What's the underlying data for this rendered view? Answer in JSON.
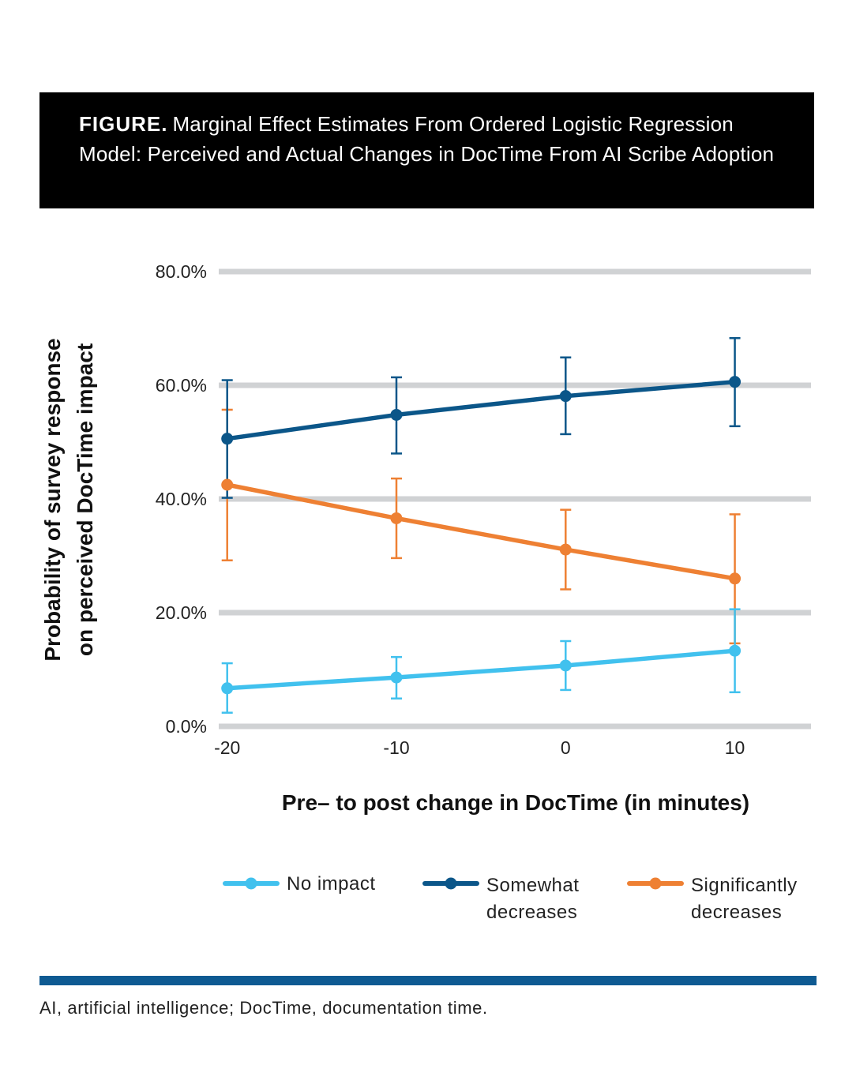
{
  "figure": {
    "label": "FIGURE.",
    "title": "Marginal Effect Estimates From Ordered Logistic Regression Model: Perceived and Actual Changes in DocTime From AI Scribe Adoption"
  },
  "footnote": "AI, artificial intelligence; DocTime, documentation time.",
  "colors": {
    "title_bg": "#000000",
    "gridline": "#d0d2d4",
    "rule": "#0e5a92",
    "no_impact": "#41c1ee",
    "somewhat": "#0b5689",
    "significantly": "#ee8033"
  },
  "chart_data": {
    "type": "line",
    "xlabel": "Pre– to post change in DocTime (in minutes)",
    "ylabel_lines": [
      "Probability of survey response",
      "on perceived DocTime impact"
    ],
    "x": [
      -20,
      -10,
      0,
      10
    ],
    "x_tick_labels": [
      "-20",
      "-10",
      "0",
      "10"
    ],
    "xlim": [
      -20.5,
      14.5
    ],
    "ylim": [
      0,
      80
    ],
    "y_ticks": [
      0,
      20,
      40,
      60,
      80
    ],
    "y_tick_labels": [
      "0.0%",
      "20.0%",
      "40.0%",
      "60.0%",
      "80.0%"
    ],
    "grid": true,
    "legend_position": "bottom",
    "series": [
      {
        "key": "no_impact",
        "name_lines": [
          "No impact"
        ],
        "values": [
          6.7,
          8.6,
          10.7,
          13.3
        ],
        "lower": [
          2.4,
          4.9,
          6.4,
          6.0
        ],
        "upper": [
          11.1,
          12.2,
          15.0,
          20.6
        ]
      },
      {
        "key": "somewhat",
        "name_lines": [
          "Somewhat",
          "decreases"
        ],
        "values": [
          50.6,
          54.8,
          58.1,
          60.6
        ],
        "lower": [
          40.2,
          48.0,
          51.4,
          52.8
        ],
        "upper": [
          60.9,
          61.4,
          64.9,
          68.3
        ]
      },
      {
        "key": "significantly",
        "name_lines": [
          "Significantly",
          "decreases"
        ],
        "values": [
          42.5,
          36.6,
          31.1,
          26.0
        ],
        "lower": [
          29.2,
          29.6,
          24.1,
          14.6
        ],
        "upper": [
          55.7,
          43.6,
          38.1,
          37.3
        ]
      }
    ]
  }
}
